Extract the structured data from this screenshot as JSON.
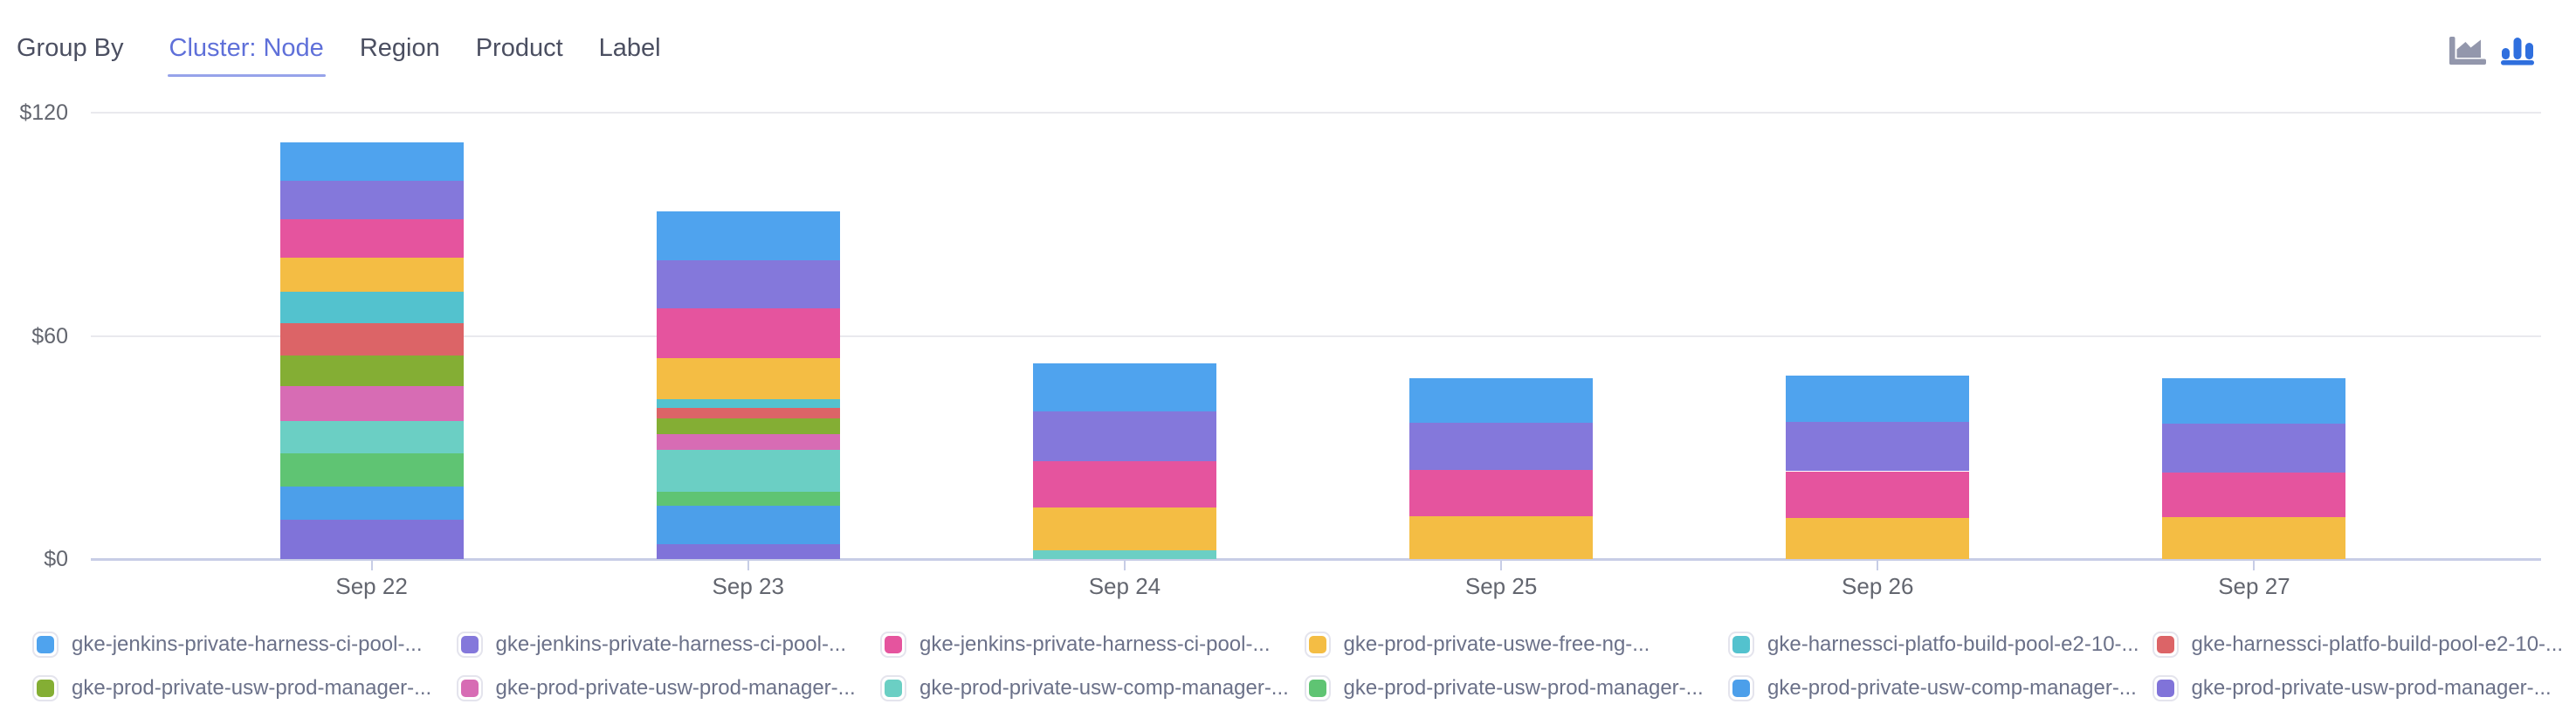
{
  "toolbar": {
    "group_by_label": "Group By",
    "tabs": [
      {
        "label": "Cluster: Node",
        "active": true
      },
      {
        "label": "Region",
        "active": false
      },
      {
        "label": "Product",
        "active": false
      },
      {
        "label": "Label",
        "active": false
      }
    ],
    "chart_type_toggle": {
      "options": [
        "area-chart-icon",
        "bar-chart-icon"
      ],
      "selected": "bar-chart-icon"
    }
  },
  "ui_colors": {
    "active_tab_text": "#5f70d9",
    "active_tab_underline": "#96a3ea",
    "tab_text": "#4b4f61",
    "icon_inactive": "#9397ac",
    "icon_active": "#2f6fde",
    "axis_line": "#c7cde6",
    "gridline": "#e9e9ee",
    "axis_text": "#63666f",
    "legend_text": "#6b7189",
    "swatch_border": "#e4e4ed"
  },
  "chart_data": {
    "type": "bar",
    "stacked": true,
    "stack_order": "first-series-on-top",
    "title": "",
    "xlabel": "",
    "ylabel": "",
    "ylim": [
      0,
      120
    ],
    "grid": true,
    "legend_position": "bottom",
    "yticks": [
      {
        "value": 0,
        "label": "$0"
      },
      {
        "value": 60,
        "label": "$60"
      },
      {
        "value": 120,
        "label": "$120"
      }
    ],
    "categories": [
      "Sep 22",
      "Sep 23",
      "Sep 24",
      "Sep 25",
      "Sep 26",
      "Sep 27"
    ],
    "series": [
      {
        "name": "gke-jenkins-private-harness-ci-pool-...",
        "color": "#4fa3ee",
        "values": [
          10.2,
          13.2,
          12.8,
          12.0,
          12.5,
          12.3
        ]
      },
      {
        "name": "gke-jenkins-private-harness-ci-pool-...",
        "color": "#8478db",
        "values": [
          10.4,
          13.0,
          13.4,
          12.8,
          13.2,
          13.2
        ]
      },
      {
        "name": "gke-jenkins-private-harness-ci-pool-...",
        "color": "#e5549e",
        "values": [
          10.2,
          13.2,
          12.5,
          12.3,
          12.5,
          12.0
        ]
      },
      {
        "name": "gke-prod-private-uswe-free-ng-...",
        "color": "#f4bd44",
        "values": [
          9.2,
          11.1,
          11.4,
          11.6,
          11.1,
          11.2
        ]
      },
      {
        "name": "gke-harnessci-platfo-build-pool-e2-10-...",
        "color": "#53c2ce",
        "values": [
          8.6,
          2.3,
          0,
          0,
          0,
          0
        ]
      },
      {
        "name": "gke-harnessci-platfo-build-pool-e2-10-...",
        "color": "#dc6467",
        "values": [
          8.6,
          3.0,
          0,
          0,
          0,
          0
        ]
      },
      {
        "name": "gke-prod-private-usw-prod-manager-...",
        "color": "#84ae34",
        "values": [
          8.3,
          4.2,
          0,
          0,
          0,
          0
        ]
      },
      {
        "name": "gke-prod-private-usw-prod-manager-...",
        "color": "#d76cb4",
        "values": [
          9.2,
          4.2,
          0,
          0,
          0,
          0
        ]
      },
      {
        "name": "gke-prod-private-usw-comp-manager-...",
        "color": "#6bcfc4",
        "values": [
          8.8,
          11.3,
          2.4,
          0,
          0,
          0
        ]
      },
      {
        "name": "gke-prod-private-usw-prod-manager-...",
        "color": "#5fc473",
        "values": [
          8.8,
          3.7,
          0,
          0,
          0,
          0
        ]
      },
      {
        "name": "gke-prod-private-usw-comp-manager-...",
        "color": "#4c9fea",
        "values": [
          9.0,
          10.2,
          0,
          0,
          0,
          0
        ]
      },
      {
        "name": "gke-prod-private-usw-prod-manager-...",
        "color": "#8073d9",
        "values": [
          10.6,
          4.1,
          0,
          0,
          0,
          0
        ]
      }
    ]
  }
}
